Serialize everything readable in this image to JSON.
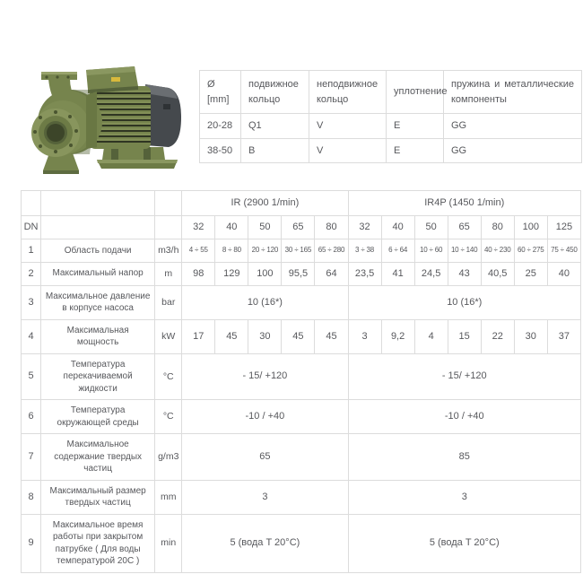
{
  "pump_image": {
    "alt": "green-centrifugal-monoblock-pump",
    "colors": {
      "body_green": "#76844d",
      "light_green": "#93a066",
      "dark_green": "#55623a",
      "fin_shadow": "#2f3522",
      "cap_gray": "#45494d",
      "cap_dark": "#2e3235",
      "yellow_label": "#d8b93c"
    }
  },
  "seal_table": {
    "headers": [
      "Ø [mm]",
      "подвижное кольцо",
      "неподвижное кольцо",
      "уплотнение",
      "пружина и металлические компоненты"
    ],
    "rows": [
      [
        "20-28",
        "Q1",
        "V",
        "E",
        "GG"
      ],
      [
        "38-50",
        "B",
        "V",
        "E",
        "GG"
      ]
    ]
  },
  "spec_table": {
    "groups": [
      {
        "label": "IR (2900 1/min)",
        "span": 5
      },
      {
        "label": "IR4P (1450 1/min)",
        "span": 7
      }
    ],
    "dn_label": "DN",
    "dn_values": [
      "32",
      "40",
      "50",
      "65",
      "80",
      "32",
      "40",
      "50",
      "65",
      "80",
      "100",
      "125"
    ],
    "rows": [
      {
        "num": "1",
        "desc": "Область подачи",
        "unit": "m3/h",
        "small": true,
        "cells": [
          "4 ÷ 55",
          "8 ÷ 80",
          "20 ÷ 120",
          "30 ÷ 165",
          "65 ÷ 280",
          "3 ÷ 38",
          "6 ÷ 64",
          "10 ÷ 60",
          "10 ÷ 140",
          "40 ÷ 230",
          "60 ÷ 275",
          "75 ÷ 450"
        ]
      },
      {
        "num": "2",
        "desc": "Максимальный напор",
        "unit": "m",
        "cells": [
          "98",
          "129",
          "100",
          "95,5",
          "64",
          "23,5",
          "41",
          "24,5",
          "43",
          "40,5",
          "25",
          "40"
        ]
      },
      {
        "num": "3",
        "desc": "Максимальное давление в корпусе насоса",
        "unit": "bar",
        "merged": [
          "10 (16*)",
          "10 (16*)"
        ]
      },
      {
        "num": "4",
        "desc": "Максимальная мощность",
        "unit": "kW",
        "cells": [
          "17",
          "45",
          "30",
          "45",
          "45",
          "3",
          "9,2",
          "4",
          "15",
          "22",
          "30",
          "37"
        ]
      },
      {
        "num": "5",
        "desc": "Температура перекачиваемой жидкости",
        "unit": "°C",
        "merged": [
          "- 15/ +120",
          "- 15/ +120"
        ]
      },
      {
        "num": "6",
        "desc": "Температура окружающей среды",
        "unit": "°C",
        "merged": [
          "-10 / +40",
          "-10 / +40"
        ]
      },
      {
        "num": "7",
        "desc": "Максимальное содержание твердых частиц",
        "unit": "g/m3",
        "merged": [
          "65",
          "85"
        ]
      },
      {
        "num": "8",
        "desc": "Максимальный размер твердых частиц",
        "unit": "mm",
        "merged": [
          "3",
          "3"
        ]
      },
      {
        "num": "9",
        "desc": "Максимальное время работы при закрытом патрубке ( Для воды температурой 20С )",
        "unit": "min",
        "merged": [
          "5 (вода T 20°C)",
          "5 (вода T 20°C)"
        ]
      }
    ]
  }
}
